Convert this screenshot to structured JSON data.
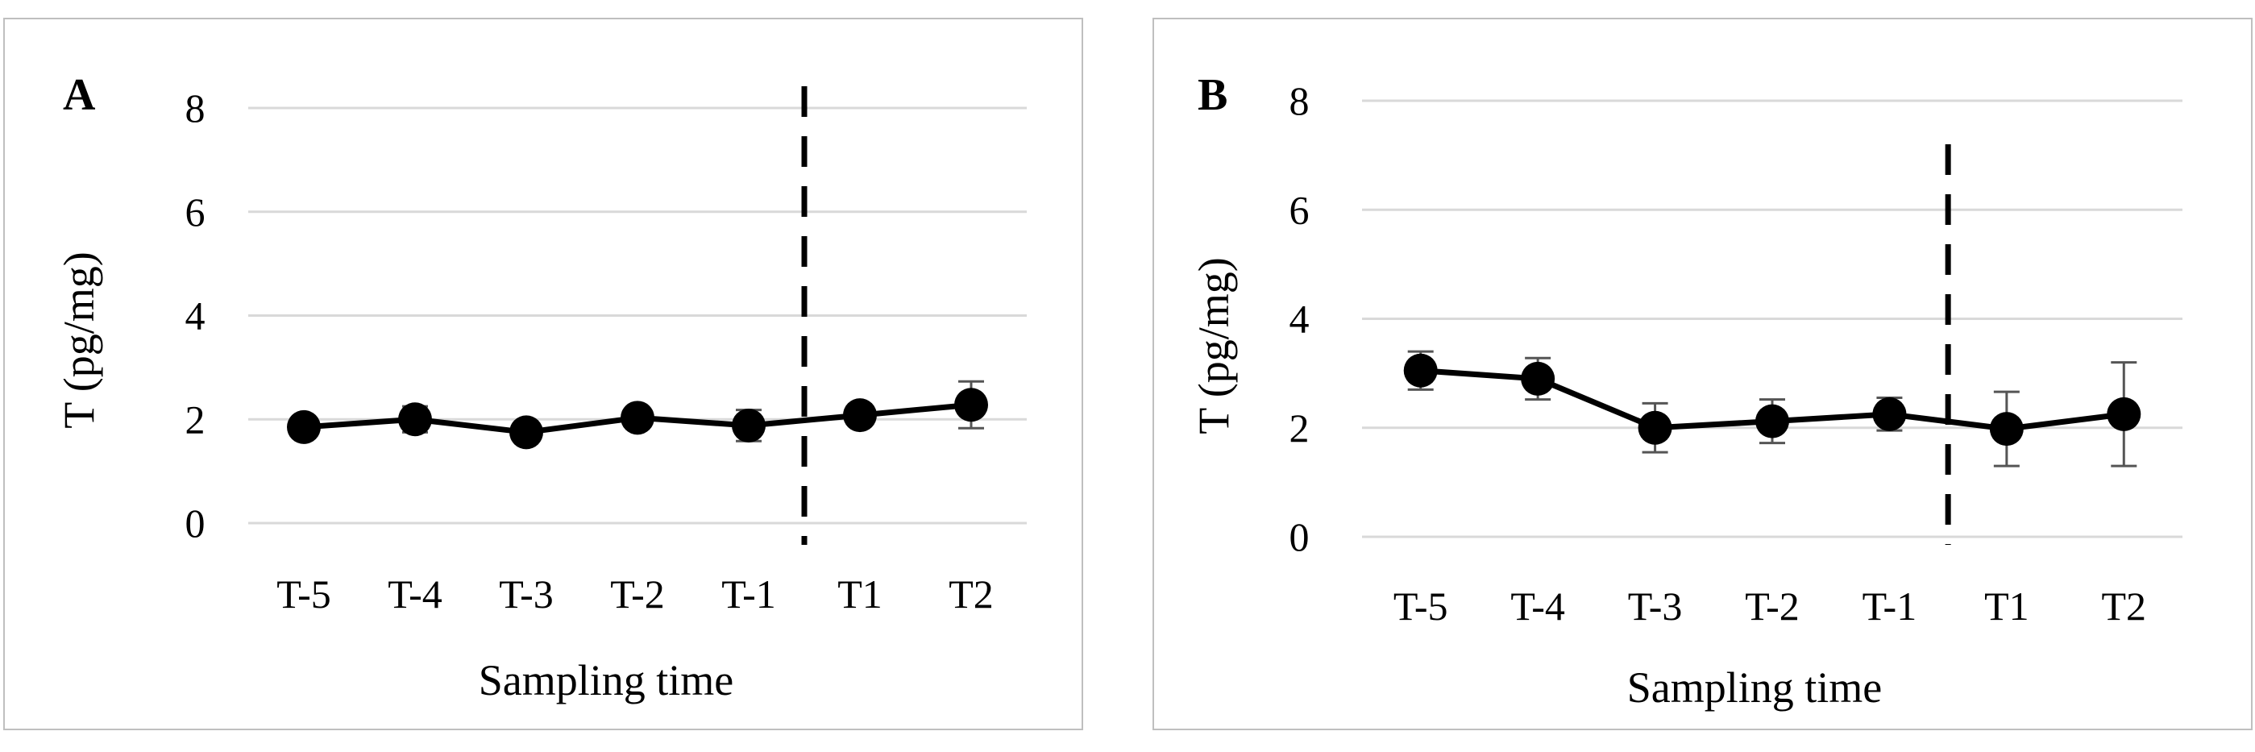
{
  "chart_data": [
    {
      "type": "line",
      "panel_label": "A",
      "categories": [
        "T-5",
        "T-4",
        "T-3",
        "T-2",
        "T-1",
        "T1",
        "T2"
      ],
      "values": [
        1.85,
        2.0,
        1.75,
        2.03,
        1.88,
        2.08,
        2.28
      ],
      "errors": [
        0.15,
        0.25,
        0.1,
        0.15,
        0.3,
        0.18,
        0.45
      ],
      "xlabel": "Sampling time",
      "ylabel": "T (pg/mg)",
      "ylim": [
        0,
        8
      ],
      "yticks": [
        0,
        2,
        4,
        6,
        8
      ],
      "grid": true,
      "dashed_line_between": [
        "T-1",
        "T1"
      ],
      "color": "#000000"
    },
    {
      "type": "line",
      "panel_label": "B",
      "categories": [
        "T-5",
        "T-4",
        "T-3",
        "T-2",
        "T-1",
        "T1",
        "T2"
      ],
      "values": [
        3.05,
        2.9,
        2.0,
        2.12,
        2.25,
        1.98,
        2.25
      ],
      "errors": [
        0.35,
        0.38,
        0.45,
        0.4,
        0.3,
        0.68,
        0.95
      ],
      "xlabel": "Sampling time",
      "ylabel": "T (pg/mg)",
      "ylim": [
        0,
        8
      ],
      "yticks": [
        0,
        2,
        4,
        6,
        8
      ],
      "grid": true,
      "dashed_line_between": [
        "T-1",
        "T1"
      ],
      "color": "#000000"
    }
  ]
}
